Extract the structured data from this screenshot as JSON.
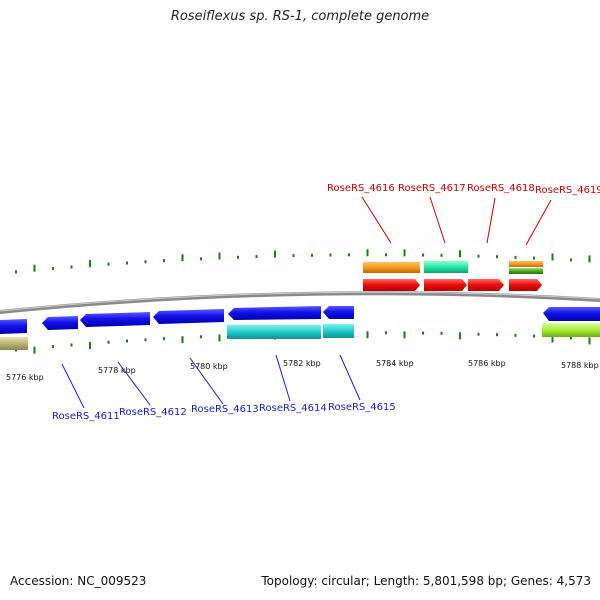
{
  "title": "Roseiflexus sp. RS-1, complete genome",
  "footer": {
    "accession": "Accession: NC_009523",
    "topology": "Topology: circular; Length: 5,801,598 bp; Genes: 4,573"
  },
  "scale": {
    "ticks": [
      "5776 kbp",
      "5778 kbp",
      "5780 kbp",
      "5782 kbp",
      "5784 kbp",
      "5786 kbp",
      "5788 kbp"
    ]
  },
  "colors": {
    "forward_label": "#cc0000",
    "reverse_label": "#1a1acc",
    "backbone": "#8a8a8a",
    "gc_tick": "#1f7a1f"
  },
  "genes_top": [
    "RoseRS_4616",
    "RoseRS_4617",
    "RoseRS_4618",
    "RoseRS_4619"
  ],
  "genes_bottom": [
    "RoseRS_4611",
    "RoseRS_4612",
    "RoseRS_4613",
    "RoseRS_4614",
    "RoseRS_4615"
  ]
}
